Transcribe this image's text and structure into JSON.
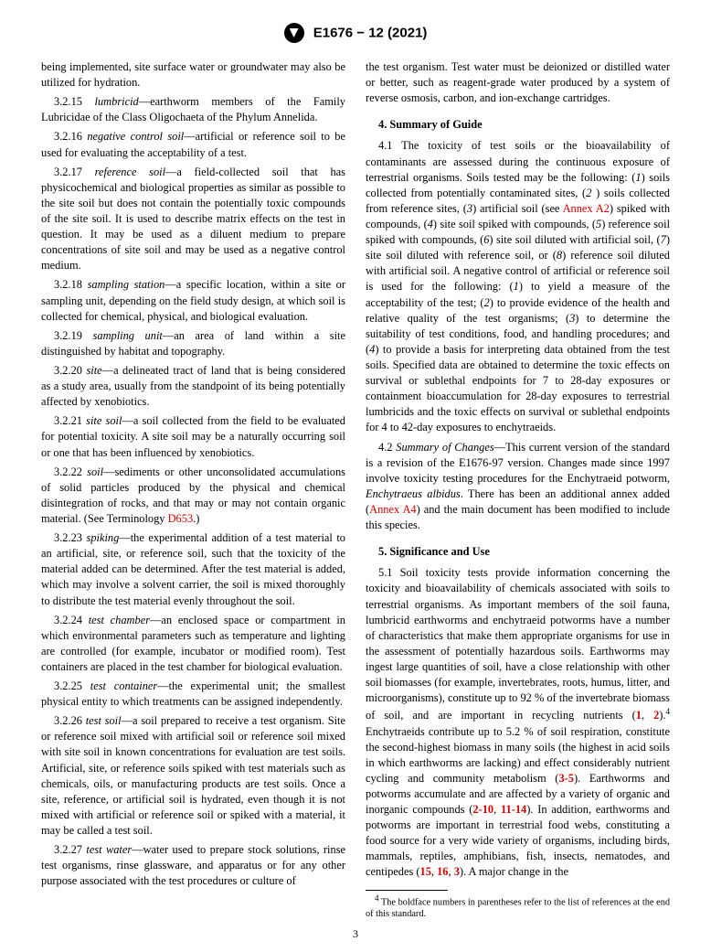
{
  "header": {
    "designation": "E1676 − 12 (2021)"
  },
  "left": {
    "p0": "being implemented, site surface water or groundwater may also be utilized for hydration.",
    "d3_2_15": {
      "num": "3.2.15 ",
      "term": "lumbricid",
      "txt": "—earthworm members of the Family Lubricidae of the Class Oligochaeta of the Phylum Annelida."
    },
    "d3_2_16": {
      "num": "3.2.16 ",
      "term": "negative control soil",
      "txt": "—artificial or reference soil to be used for evaluating the acceptability of a test."
    },
    "d3_2_17": {
      "num": "3.2.17 ",
      "term": "reference soil",
      "txt": "—a field-collected soil that has physicochemical and biological properties as similar as possible to the site soil but does not contain the potentially toxic compounds of the site soil. It is used to describe matrix effects on the test in question. It may be used as a diluent medium to prepare concentrations of site soil and may be used as a negative control medium."
    },
    "d3_2_18": {
      "num": "3.2.18 ",
      "term": "sampling station",
      "txt": "—a specific location, within a site or sampling unit, depending on the field study design, at which soil is collected for chemical, physical, and biological evaluation."
    },
    "d3_2_19": {
      "num": "3.2.19 ",
      "term": "sampling unit",
      "txt": "—an area of land within a site distinguished by habitat and topography."
    },
    "d3_2_20": {
      "num": "3.2.20 ",
      "term": "site",
      "txt": "—a delineated tract of land that is being considered as a study area, usually from the standpoint of its being potentially affected by xenobiotics."
    },
    "d3_2_21": {
      "num": "3.2.21 ",
      "term": "site soil",
      "txt": "—a soil collected from the field to be evaluated for potential toxicity. A site soil may be a naturally occurring soil or one that has been influenced by xenobiotics."
    },
    "d3_2_22": {
      "num": "3.2.22 ",
      "term": "soil",
      "txt_a": "—sediments or other unconsolidated accumulations of solid particles produced by the physical and chemical disintegration of rocks, and that may or may not contain organic material. (See Terminology ",
      "link": "D653",
      "txt_b": ".)"
    },
    "d3_2_23": {
      "num": "3.2.23 ",
      "term": "spiking",
      "txt": "—the experimental addition of a test material to an artificial, site, or reference soil, such that the toxicity of the material added can be determined. After the test material is added, which may involve a solvent carrier, the soil is mixed thoroughly to distribute the test material evenly throughout the soil."
    },
    "d3_2_24": {
      "num": "3.2.24 ",
      "term": "test chamber",
      "txt": "—an enclosed space or compartment in which environmental parameters such as temperature and lighting are controlled (for example, incubator or modified room). Test containers are placed in the test chamber for biological evaluation."
    },
    "d3_2_25": {
      "num": "3.2.25 ",
      "term": "test container",
      "txt": "—the experimental unit; the smallest physical entity to which treatments can be assigned independently."
    },
    "d3_2_26": {
      "num": "3.2.26 ",
      "term": "test soil",
      "txt": "—a soil prepared to receive a test organism. Site or reference soil mixed with artificial soil or reference soil mixed with site soil in known concentrations for evaluation are test soils. Artificial, site, or reference soils spiked with test materials such as chemicals, oils, or manufacturing products are test soils. Once a site, reference, or artificial soil is hydrated, even though it is not mixed with artificial or reference soil or spiked with a material, it may be called a test soil."
    },
    "d3_2_27": {
      "num": "3.2.27 ",
      "term": "test water",
      "txt": "—water used to prepare stock solutions, rinse test organisms, rinse glassware, and apparatus or for any other purpose associated with the test procedures or culture of"
    }
  },
  "right": {
    "p_cont": "the test organism. Test water must be deionized or distilled water or better, such as reagent-grade water produced by a system of reverse osmosis, carbon, and ion-exchange cartridges.",
    "s4": {
      "head": "4. Summary of Guide",
      "p4_1_a": "4.1 The toxicity of test soils or the bioavailability of contaminants are assessed during the continuous exposure of terrestrial organisms. Soils tested may be the following: (",
      "i1": "1",
      "p4_1_b": ") soils collected from potentially contaminated sites, (",
      "i2": "2",
      "p4_1_c": " ) soils collected from reference sites, (",
      "i3": "3",
      "p4_1_d": ") artificial soil (see ",
      "link1": "Annex A2",
      "p4_1_e": ") spiked with compounds, (",
      "i4": "4",
      "p4_1_f": ") site soil spiked with compounds, (",
      "i5": "5",
      "p4_1_g": ") reference soil spiked with compounds, (",
      "i6": "6",
      "p4_1_h": ") site soil diluted with artificial soil, (",
      "i7": "7",
      "p4_1_i": ") site soil diluted with reference soil, or (",
      "i8": "8",
      "p4_1_j": ") reference soil diluted with artificial soil. A negative control of artificial or reference soil is used for the following: (",
      "i9": "1",
      "p4_1_k": ") to yield a measure of the acceptability of the test; (",
      "i10": "2",
      "p4_1_l": ") to provide evidence of the health and relative quality of the test organisms; (",
      "i11": "3",
      "p4_1_m": ") to determine the suitability of test conditions, food, and handling procedures; and (",
      "i12": "4",
      "p4_1_n": ") to provide a basis for interpreting data obtained from the test soils. Specified data are obtained to determine the toxic effects on survival or sublethal endpoints for 7 to 28-day exposures or containment bioaccumulation for 28-day exposures to terrestrial lumbricids and the toxic effects on survival or sublethal endpoints for 4 to 42-day exposures to enchytraeids.",
      "p4_2_a": "4.2 ",
      "p4_2_term": "Summary of Changes",
      "p4_2_b": "—This current version of the standard is a revision of the E1676-97 version. Changes made since 1997 involve toxicity testing procedures for the Enchytraeid potworm, ",
      "p4_2_sp": "Enchytraeus albidus",
      "p4_2_c": ". There has been an additional annex added (",
      "link2": "Annex A4",
      "p4_2_d": ") and the main document has been modified to include this species."
    },
    "s5": {
      "head": "5. Significance and Use",
      "p5_1_a": "5.1 Soil toxicity tests provide information concerning the toxicity and bioavailability of chemicals associated with soils to terrestrial organisms. As important members of the soil fauna, lumbricid earthworms and enchytraeid potworms have a number of characteristics that make them appropriate organisms for use in the assessment of potentially hazardous soils. Earthworms may ingest large quantities of soil, have a close relationship with other soil biomasses (for example, invertebrates, roots, humus, litter, and microorganisms), constitute up to 92 % of the invertebrate biomass of soil, and are important in recycling nutrients (",
      "r1": "1",
      "c1": ", ",
      "r2": "2",
      "p5_1_b": ").",
      "sup": "4",
      "p5_1_c": " Enchytraeids contribute up to 5.2 % of soil respiration, constitute the second-highest biomass in many soils (the highest in acid soils in which earthworms are lacking) and effect considerably nutrient cycling and community metabolism (",
      "r3": "3-5",
      "p5_1_d": "). Earthworms and potworms accumulate and are affected by a variety of organic and inorganic compounds (",
      "r4": "2-10",
      "c2": ", ",
      "r5": "11-14",
      "p5_1_e": "). In addition, earthworms and potworms are important in terrestrial food webs, constituting a food source for a very wide variety of organisms, including birds, mammals, reptiles, amphibians, fish, insects, nematodes, and centipedes (",
      "r6": "15",
      "c3": ", ",
      "r7": "16",
      "c4": ", ",
      "r8": "3",
      "p5_1_f": "). A major change in the"
    }
  },
  "footnote": {
    "sup": "4",
    "txt": " The boldface numbers in parentheses refer to the list of references at the end of this standard."
  },
  "pageNumber": "3"
}
